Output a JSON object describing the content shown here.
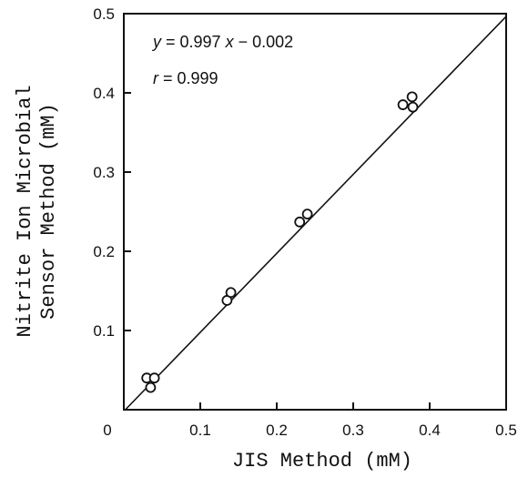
{
  "chart_data": {
    "type": "scatter",
    "title": "",
    "xlabel": "JIS Method (mM)",
    "ylabel_line1": "Nitrite Ion Microbial",
    "ylabel_line2": "Sensor Method (mM)",
    "xlim": [
      0,
      0.5
    ],
    "ylim": [
      0,
      0.5
    ],
    "x_ticks": [
      "0",
      "0.1",
      "0.2",
      "0.3",
      "0.4",
      "0.5"
    ],
    "y_ticks": [
      "0.1",
      "0.2",
      "0.3",
      "0.4",
      "0.5"
    ],
    "grid": false,
    "series": [
      {
        "points": [
          [
            0.03,
            0.04
          ],
          [
            0.04,
            0.04
          ],
          [
            0.035,
            0.028
          ],
          [
            0.135,
            0.138
          ],
          [
            0.14,
            0.148
          ],
          [
            0.23,
            0.237
          ],
          [
            0.24,
            0.247
          ],
          [
            0.365,
            0.385
          ],
          [
            0.377,
            0.395
          ],
          [
            0.378,
            0.382
          ]
        ]
      }
    ],
    "fit": {
      "slope": 0.997,
      "intercept": -0.002
    },
    "annotations": {
      "eq_y": "y",
      "eq_mid": " = 0.997 ",
      "eq_x": "x",
      "eq_tail": " − 0.002",
      "r_label": "r",
      "r_value": " = 0.999"
    }
  }
}
